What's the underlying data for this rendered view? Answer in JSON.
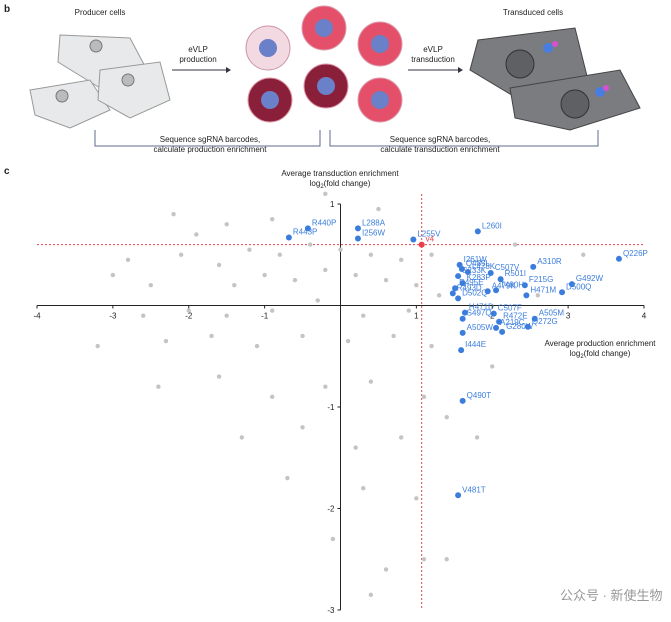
{
  "panel_b": {
    "label": "b",
    "producer": "Producer cells",
    "production": [
      "eVLP",
      "production"
    ],
    "transduction": [
      "eVLP",
      "transduction"
    ],
    "transduced": "Transduced cells",
    "seq_production": [
      "Sequence sgRNA barcodes,",
      "calculate production enrichment"
    ],
    "seq_transduction": [
      "Sequence sgRNA barcodes,",
      "calculate transduction enrichment"
    ]
  },
  "chart_data": {
    "type": "scatter",
    "panel_label": "c",
    "y_label": {
      "line": "Average transduction enrichment",
      "base": "log",
      "sub": "2",
      "rest": "(fold change)"
    },
    "x_label": {
      "line": "Average production enrichment",
      "base": "log",
      "sub": "2",
      "rest": "(fold change)"
    },
    "xlim": [
      -4,
      4
    ],
    "ylim": [
      -3,
      1
    ],
    "xticks": [
      -4,
      -3,
      -2,
      -1,
      1,
      2,
      3,
      4
    ],
    "yticks": [
      1,
      -1,
      -2,
      -3
    ],
    "thresholds": {
      "x": 1.07,
      "y": 0.6,
      "color": "#e8414b"
    },
    "series": [
      {
        "color": "#c4c4c4",
        "x": [
          -2.2,
          -1.9,
          -1.5,
          -0.9,
          -0.2,
          0.5,
          -2.8,
          -3.0,
          -2.5,
          -2.1,
          -1.6,
          -1.2,
          -0.8,
          -0.4,
          0,
          0.4,
          0.8,
          1.2,
          -1.4,
          -1.0,
          -0.6,
          -0.2,
          0.2,
          0.6,
          1.0,
          -2.6,
          -2.0,
          -1.5,
          -0.9,
          -0.3,
          0.3,
          0.9,
          1.3,
          -3.2,
          -2.3,
          -1.7,
          -1.1,
          -0.5,
          0.1,
          0.7,
          1.2,
          -2.4,
          -1.6,
          -0.9,
          -0.2,
          0.4,
          1.1,
          -1.3,
          -0.5,
          0.2,
          0.8,
          1.4,
          -0.7,
          0.3,
          1.0,
          -0.1,
          0.6,
          1.1,
          0.4,
          1.4,
          2.3,
          2.6,
          2.0,
          1.8,
          3.2
        ],
        "y": [
          0.9,
          0.7,
          0.8,
          0.85,
          1.1,
          0.95,
          0.45,
          0.3,
          0.2,
          0.5,
          0.4,
          0.55,
          0.5,
          0.6,
          0.55,
          0.5,
          0.45,
          0.5,
          0.2,
          0.3,
          0.25,
          0.35,
          0.3,
          0.25,
          0.2,
          -0.1,
          -0.05,
          -0.1,
          -0.05,
          0.05,
          -0.1,
          -0.05,
          0.1,
          -0.4,
          -0.35,
          -0.3,
          -0.4,
          -0.3,
          -0.35,
          -0.3,
          -0.4,
          -0.8,
          -0.7,
          -0.9,
          -0.8,
          -0.75,
          -0.9,
          -1.3,
          -1.2,
          -1.4,
          -1.3,
          -1.1,
          -1.7,
          -1.8,
          -1.9,
          -2.3,
          -2.6,
          -2.5,
          -2.85,
          -2.5,
          0.6,
          0.1,
          -0.6,
          -1.3,
          0.5
        ]
      },
      {
        "color": "#e8414b",
        "labels": [
          "v4"
        ],
        "x": [
          1.07
        ],
        "y": [
          0.6
        ]
      },
      {
        "color": "#3b7ddd",
        "labels": [
          "R440P",
          "R443P",
          "L288A",
          "I256W",
          "L255V",
          "L260I",
          "Q226P",
          "I261W",
          "Q485L",
          "L478K",
          "C507V",
          "A310R",
          "S233K",
          "R501I",
          "F215G",
          "G492W",
          "K283P",
          "R495E",
          "A479K",
          "T480H",
          "R493D",
          "H471M",
          "D500Q",
          "D502Q",
          "H471D",
          "C507F",
          "S497Q",
          "A505M",
          "R472E",
          "A219C",
          "Q272G",
          "A505W",
          "G280W",
          "I444E",
          "Q490T",
          "V481T"
        ],
        "x": [
          -0.43,
          -0.68,
          0.23,
          0.23,
          0.96,
          1.81,
          3.67,
          1.57,
          1.6,
          1.68,
          1.98,
          2.54,
          1.55,
          2.11,
          2.43,
          3.05,
          1.61,
          1.51,
          1.94,
          2.05,
          1.48,
          2.45,
          2.92,
          1.55,
          1.64,
          2.02,
          1.61,
          2.56,
          2.09,
          2.05,
          2.47,
          1.61,
          2.13,
          1.59,
          1.61,
          1.55
        ],
        "y": [
          0.76,
          0.67,
          0.76,
          0.66,
          0.65,
          0.73,
          0.46,
          0.4,
          0.36,
          0.33,
          0.32,
          0.38,
          0.29,
          0.26,
          0.2,
          0.21,
          0.22,
          0.17,
          0.14,
          0.15,
          0.12,
          0.1,
          0.13,
          0.07,
          -0.07,
          -0.08,
          -0.13,
          -0.13,
          -0.16,
          -0.22,
          -0.21,
          -0.27,
          -0.26,
          -0.44,
          -0.94,
          -1.87
        ]
      }
    ]
  },
  "watermark": "公众号 · 新使生物"
}
